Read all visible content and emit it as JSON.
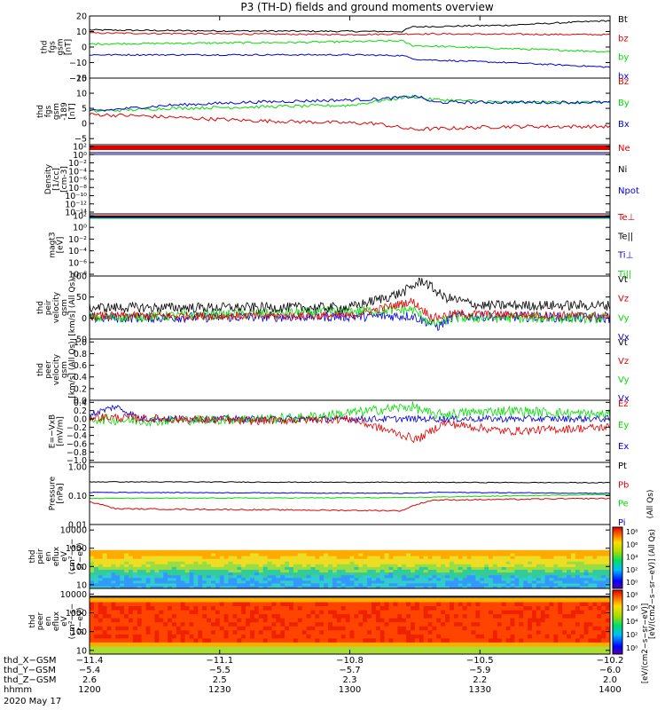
{
  "title": "P3 (TH-D) fields and ground moments overview",
  "date_label": "2020 May 17",
  "colors": {
    "black": "#000000",
    "red": "#e00000",
    "green": "#00dd00",
    "blue": "#0000dd"
  },
  "panels": [
    {
      "key": "fgs",
      "ylabel": [
        "thd",
        "fgs",
        "gsm",
        "[nT]"
      ],
      "ticks": [
        {
          "v": 20,
          "t": "20"
        },
        {
          "v": 10,
          "t": "10"
        },
        {
          "v": 0,
          "t": "0"
        },
        {
          "v": -10,
          "t": "−10"
        },
        {
          "v": -20,
          "t": "−20"
        }
      ],
      "legend": [
        {
          "text": "Bt",
          "color": "black"
        },
        {
          "text": "bz",
          "color": "red"
        },
        {
          "text": "by",
          "color": "green"
        },
        {
          "text": "bx",
          "color": "blue"
        }
      ]
    },
    {
      "key": "fgs_gse",
      "ylabel": [
        "thd",
        "fgs",
        "gsm",
        "-189",
        "[nT]"
      ],
      "ticks": [
        {
          "v": 15,
          "t": "15"
        },
        {
          "v": 10,
          "t": "10"
        },
        {
          "v": 5,
          "t": "5"
        },
        {
          "v": 0,
          "t": "0"
        },
        {
          "v": -5,
          "t": "−5"
        }
      ],
      "legend": [
        {
          "text": "Bz",
          "color": "red"
        },
        {
          "text": "By",
          "color": "green"
        },
        {
          "text": "Bx",
          "color": "blue"
        }
      ]
    },
    {
      "key": "density",
      "ylabel": [
        "Density",
        "[1/cc]",
        "[cm-3]"
      ],
      "ticks": [
        {
          "t": "10²"
        },
        {
          "t": "10⁰"
        },
        {
          "t": "10⁻²"
        },
        {
          "t": "10⁻⁴"
        },
        {
          "t": "10⁻⁶"
        },
        {
          "t": "10⁻⁸"
        },
        {
          "t": "10⁻¹⁰"
        },
        {
          "t": "10⁻¹²"
        },
        {
          "t": "10⁻¹⁴"
        }
      ],
      "legend": [
        {
          "text": "Ne",
          "color": "red"
        },
        {
          "text": "Ni",
          "color": "black"
        },
        {
          "text": "Npot",
          "color": "blue"
        }
      ]
    },
    {
      "key": "temp",
      "ylabel": [
        "magt3",
        "[eV]"
      ],
      "ticks": [
        {
          "t": "10²"
        },
        {
          "t": "10⁰"
        },
        {
          "t": "10⁻²"
        },
        {
          "t": "10⁻⁴"
        },
        {
          "t": "10⁻⁶"
        },
        {
          "t": "10⁻⁸"
        }
      ],
      "legend": [
        {
          "text": "Te⊥",
          "color": "red"
        },
        {
          "text": "Te||",
          "color": "black"
        },
        {
          "text": "Ti⊥",
          "color": "blue"
        },
        {
          "text": "Ti||",
          "color": "green"
        }
      ]
    },
    {
      "key": "peir_vel",
      "ylabel": [
        "thd",
        "peir",
        "velocity",
        "gsm",
        "[km/s] (All Qs)"
      ],
      "ticks": [
        {
          "v": 100,
          "t": "100"
        },
        {
          "v": 50,
          "t": "50"
        },
        {
          "v": 0,
          "t": "0"
        },
        {
          "v": -50,
          "t": "−50"
        }
      ],
      "legend": [
        {
          "text": "Vt",
          "color": "black"
        },
        {
          "text": "Vz",
          "color": "red"
        },
        {
          "text": "Vy",
          "color": "green"
        },
        {
          "text": "Vx",
          "color": "blue"
        }
      ]
    },
    {
      "key": "peer_vel",
      "ylabel": [
        "thd",
        "peer",
        "velocity",
        "gsm",
        "[km/s] (All Qs)"
      ],
      "ticks": [
        {
          "v": 1,
          "t": "1.0"
        },
        {
          "v": 0.8,
          "t": "0.8"
        },
        {
          "v": 0.6,
          "t": "0.6"
        },
        {
          "v": 0.4,
          "t": "0.4"
        },
        {
          "v": 0.2,
          "t": "0.2"
        },
        {
          "v": 0,
          "t": "0.0"
        }
      ],
      "legend": [
        {
          "text": "Vt",
          "color": "black"
        },
        {
          "text": "Vz",
          "color": "red"
        },
        {
          "text": "Vy",
          "color": "green"
        },
        {
          "text": "Vx",
          "color": "blue"
        }
      ]
    },
    {
      "key": "efield",
      "ylabel": [
        "E=−VxB",
        "[mV/m]"
      ],
      "ticks": [
        {
          "v": 0.4,
          "t": "0.4"
        },
        {
          "v": 0.2,
          "t": "0.2"
        },
        {
          "v": 0,
          "t": "0.0"
        },
        {
          "v": -0.2,
          "t": "−0.2"
        },
        {
          "v": -0.4,
          "t": "−0.4"
        },
        {
          "v": -0.6,
          "t": "−0.6"
        },
        {
          "v": -0.8,
          "t": "−0.8"
        },
        {
          "v": -1,
          "t": "−1.0"
        }
      ],
      "legend": [
        {
          "text": "Ez",
          "color": "red"
        },
        {
          "text": "Ey",
          "color": "green"
        },
        {
          "text": "Ex",
          "color": "blue"
        }
      ]
    },
    {
      "key": "pressure",
      "ylabel": [
        "Pressure",
        "[nPa]"
      ],
      "ticks": [
        {
          "v": 1,
          "t": "1.00"
        },
        {
          "v": 0.1,
          "t": "0.10"
        },
        {
          "v": 0.01,
          "t": "0.01"
        }
      ],
      "legend": [
        {
          "text": "Pt",
          "color": "black"
        },
        {
          "text": "Pb",
          "color": "red"
        },
        {
          "text": "Pe",
          "color": "green"
        },
        {
          "text": "Pi",
          "color": "blue"
        }
      ],
      "legend_note": "(All Qs)"
    },
    {
      "key": "peir_eflux",
      "ylabel": [
        "thd",
        "peir",
        "en",
        "eflux",
        "eV",
        "(cm²−s−",
        "sr−eV)"
      ],
      "ticks": [
        {
          "v": 10000,
          "t": "10000"
        },
        {
          "v": 1000,
          "t": "1000"
        },
        {
          "v": 100,
          "t": "100"
        },
        {
          "v": 10,
          "t": "10"
        }
      ]
    },
    {
      "key": "peer_eflux",
      "ylabel": [
        "thd",
        "peer",
        "en",
        "eflux",
        "eV",
        "(cm²−s−",
        "sr−eV)"
      ],
      "ticks": [
        {
          "v": 10000,
          "t": "10000"
        },
        {
          "v": 1000,
          "t": "1000"
        },
        {
          "v": 100,
          "t": "100"
        },
        {
          "v": 10,
          "t": "10"
        }
      ]
    }
  ],
  "colorbar": {
    "ticks": [
      "10⁸",
      "10⁶",
      "10⁴",
      "10²",
      "10⁰"
    ],
    "label": "[eV/(cm2−s−sr−eV)] (All Qs)",
    "label2": "[eV/(cm2−s−sr−eV)]"
  },
  "xaxis": {
    "row_labels": [
      "thd_X−GSM",
      "thd_Y−GSM",
      "thd_Z−GSM",
      "hhmm"
    ],
    "columns": [
      {
        "x": "−11.4",
        "y": "−5.4",
        "z": "2.6",
        "hhmm": "1200"
      },
      {
        "x": "−11.1",
        "y": "−5.5",
        "z": "2.5",
        "hhmm": "1230"
      },
      {
        "x": "−10.8",
        "y": "−5.7",
        "z": "2.3",
        "hhmm": "1300"
      },
      {
        "x": "−10.5",
        "y": "−5.9",
        "z": "2.2",
        "hhmm": "1330"
      },
      {
        "x": "−10.2",
        "y": "−6.0",
        "z": "2.0",
        "hhmm": "1400"
      }
    ]
  },
  "chart_data": {
    "type": "line",
    "title": "P3 (TH-D) fields and ground moments overview",
    "x_hhmm": [
      "1200",
      "1230",
      "1300",
      "1330",
      "1400"
    ],
    "series": [
      {
        "name": "Bt",
        "values": [
          11,
          10,
          10,
          13,
          17
        ]
      },
      {
        "name": "bz",
        "values": [
          9,
          8,
          8,
          8,
          8
        ]
      },
      {
        "name": "by",
        "values": [
          2,
          2,
          4,
          0,
          -3
        ]
      },
      {
        "name": "bx",
        "values": [
          -5,
          -5,
          -5,
          -10,
          -13
        ]
      },
      {
        "name": "Bz",
        "values": [
          3,
          1,
          0,
          -2,
          -1
        ]
      },
      {
        "name": "By",
        "values": [
          4,
          6,
          7,
          8,
          7
        ]
      },
      {
        "name": "Bx",
        "values": [
          4,
          7,
          8,
          7,
          7
        ]
      },
      {
        "name": "Pt",
        "values": [
          0.3,
          0.28,
          0.28,
          0.28,
          0.28
        ]
      },
      {
        "name": "Pe",
        "values": [
          0.08,
          0.08,
          0.09,
          0.09,
          0.11
        ]
      },
      {
        "name": "Pi",
        "values": [
          0.13,
          0.12,
          0.12,
          0.12,
          0.12
        ]
      },
      {
        "name": "Pb",
        "values": [
          0.04,
          0.03,
          0.03,
          0.07,
          0.08
        ]
      }
    ]
  }
}
